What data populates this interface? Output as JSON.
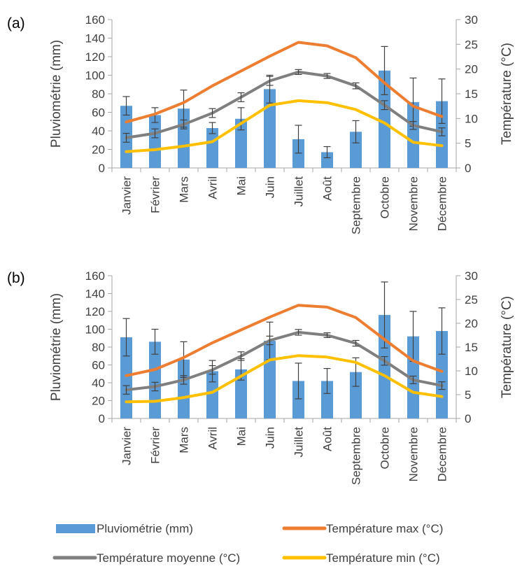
{
  "colors": {
    "bar": "#5B9BD5",
    "max": "#ED7D31",
    "mean": "#7F7F7F",
    "min": "#FFC000",
    "axis": "#A6A6A6",
    "error": "#404040"
  },
  "legend": [
    {
      "key": "rain",
      "label": "Pluviométrie (mm)",
      "symbol": "bar",
      "color": "#5B9BD5"
    },
    {
      "key": "max",
      "label": "Température max (°C)",
      "symbol": "line",
      "color": "#ED7D31"
    },
    {
      "key": "mean",
      "label": "Température moyenne (°C)",
      "symbol": "line",
      "color": "#7F7F7F"
    },
    {
      "key": "min",
      "label": "Température min (°C)",
      "symbol": "line",
      "color": "#FFC000"
    }
  ],
  "chart_data": [
    {
      "type": "bar",
      "panel_label": "(a)",
      "categories": [
        "Janvier",
        "Février",
        "Mars",
        "Avril",
        "Mai",
        "Juin",
        "Juillet",
        "Août",
        "Septembre",
        "Octobre",
        "Novembre",
        "Décembre"
      ],
      "ylabel": "Pluviométrie (mm)",
      "y2label": "Température (°C)",
      "ylim": [
        0,
        160
      ],
      "yticks": [
        0,
        20,
        40,
        60,
        80,
        100,
        120,
        140,
        160
      ],
      "y2lim": [
        0,
        30
      ],
      "y2ticks": [
        0,
        5,
        10,
        15,
        20,
        25,
        30
      ],
      "grid": false,
      "legend_position": "bottom",
      "bars": {
        "name": "Pluviométrie (mm)",
        "values": [
          67,
          57,
          64,
          43,
          53,
          85,
          31,
          17,
          39,
          105,
          71,
          72
        ],
        "errors": [
          10,
          8,
          20,
          6,
          12,
          15,
          15,
          6,
          12,
          26,
          26,
          24
        ]
      },
      "series": [
        {
          "name": "Température max (°C)",
          "axis": "right",
          "values": [
            9.3,
            10.9,
            13.2,
            16.6,
            19.6,
            22.6,
            25.4,
            24.7,
            22.3,
            17.2,
            12.5,
            10.4
          ]
        },
        {
          "name": "Température moyenne (°C)",
          "axis": "right",
          "values": [
            6.1,
            7.0,
            8.8,
            11.1,
            14.3,
            17.6,
            19.4,
            18.6,
            16.6,
            12.7,
            8.6,
            7.3
          ]
        },
        {
          "name": "Température min (°C)",
          "axis": "right",
          "values": [
            3.3,
            3.7,
            4.4,
            5.3,
            9.0,
            12.7,
            13.6,
            13.2,
            11.8,
            9.1,
            5.2,
            4.5
          ]
        }
      ],
      "series_errors": [
        [
          null,
          null,
          null,
          null,
          null,
          null,
          null,
          null,
          null,
          null,
          null,
          null
        ],
        [
          0.9,
          0.9,
          0.9,
          0.9,
          0.9,
          0.9,
          0.5,
          0.5,
          0.6,
          0.9,
          0.8,
          0.8
        ],
        [
          null,
          null,
          null,
          null,
          null,
          null,
          null,
          null,
          null,
          null,
          null,
          null
        ]
      ]
    },
    {
      "type": "bar",
      "panel_label": "(b)",
      "categories": [
        "Janvier",
        "Février",
        "Mars",
        "Avril",
        "Mai",
        "Juin",
        "Juillet",
        "Août",
        "Septembre",
        "Octobre",
        "Novembre",
        "Décembre"
      ],
      "ylabel": "Pluviométrie (mm)",
      "y2label": "Température (°C)",
      "ylim": [
        0,
        160
      ],
      "yticks": [
        0,
        20,
        40,
        60,
        80,
        100,
        120,
        140,
        160
      ],
      "y2lim": [
        0,
        30
      ],
      "y2ticks": [
        0,
        5,
        10,
        15,
        20,
        25,
        30
      ],
      "grid": false,
      "legend_position": "bottom",
      "bars": {
        "name": "Pluviométrie (mm)",
        "values": [
          91,
          86,
          66,
          53,
          55,
          87,
          42,
          42,
          52,
          116,
          92,
          98
        ],
        "errors": [
          21,
          14,
          20,
          12,
          12,
          21,
          20,
          14,
          16,
          37,
          28,
          26
        ]
      },
      "series": [
        {
          "name": "Température max (°C)",
          "axis": "right",
          "values": [
            9.0,
            10.3,
            12.8,
            15.9,
            18.6,
            21.3,
            23.8,
            23.4,
            21.2,
            16.6,
            12.1,
            9.9
          ]
        },
        {
          "name": "Température moyenne (°C)",
          "axis": "right",
          "values": [
            6.0,
            6.7,
            8.1,
            10.2,
            13.1,
            16.4,
            18.1,
            17.5,
            15.8,
            12.1,
            8.1,
            6.9
          ]
        },
        {
          "name": "Température min (°C)",
          "axis": "right",
          "values": [
            3.5,
            3.6,
            4.4,
            5.5,
            8.9,
            12.3,
            13.2,
            12.9,
            11.8,
            9.0,
            5.5,
            4.6
          ]
        }
      ],
      "series_errors": [
        [
          null,
          null,
          null,
          null,
          null,
          null,
          null,
          null,
          null,
          null,
          null,
          null
        ],
        [
          0.9,
          0.9,
          0.9,
          0.9,
          0.9,
          0.9,
          0.6,
          0.5,
          0.6,
          0.9,
          0.8,
          0.8
        ],
        [
          null,
          null,
          null,
          null,
          null,
          null,
          null,
          null,
          null,
          null,
          null,
          null
        ]
      ]
    }
  ]
}
